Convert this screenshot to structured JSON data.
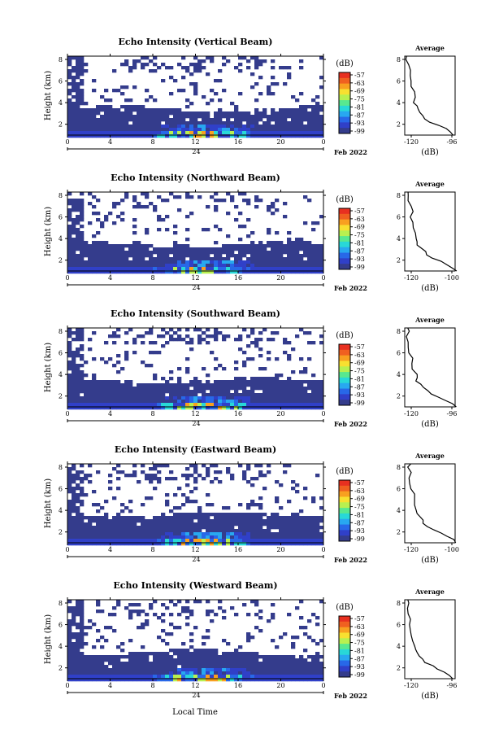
{
  "figure": {
    "xlabel": "Local Time",
    "panels": [
      {
        "title": "Echo Intensity (Vertical Beam)",
        "profile_xticks": [
          "-120",
          "-96"
        ]
      },
      {
        "title": "Echo Intensity (Northward Beam)",
        "profile_xticks": [
          "-120",
          "-100"
        ]
      },
      {
        "title": "Echo Intensity (Southward Beam)",
        "profile_xticks": [
          "-120",
          "-96"
        ]
      },
      {
        "title": "Echo Intensity (Eastward Beam)",
        "profile_xticks": [
          "-120",
          "-100"
        ]
      },
      {
        "title": "Echo Intensity (Westward Beam)",
        "profile_xticks": [
          "-120",
          "-96"
        ]
      }
    ]
  },
  "chart_data": {
    "type": "heatmap",
    "ylabel": "Height (km)",
    "y_ticks": [
      "2",
      "4",
      "6",
      "8"
    ],
    "ylim": [
      1,
      8.3
    ],
    "x_ticks": [
      "0",
      "4",
      "8",
      "12",
      "16",
      "20",
      "0"
    ],
    "xlim": [
      0,
      24
    ],
    "date_tick": "24",
    "date_label": "Feb 2022",
    "colorbar": {
      "label": "(dB)",
      "ticks": [
        "-57",
        "-63",
        "-69",
        "-75",
        "-81",
        "-87",
        "-93",
        "-99"
      ],
      "colors": [
        "#e83020",
        "#f06020",
        "#f8a020",
        "#f8e030",
        "#b8f050",
        "#58e890",
        "#28d8d8",
        "#28a8f0",
        "#2868e8",
        "#3040c8",
        "#343c8c"
      ]
    },
    "profile": {
      "title": "Average",
      "xlabel": "(dB)",
      "y_ticks": [
        "2",
        "4",
        "6",
        "8"
      ],
      "ylim": [
        1,
        8.3
      ],
      "xlim": [
        -128,
        -90
      ],
      "points": [
        [
          -90.5,
          1.0
        ],
        [
          -93,
          1.3
        ],
        [
          -98,
          1.6
        ],
        [
          -103,
          1.9
        ],
        [
          -108,
          2.2
        ],
        [
          -112,
          2.5
        ],
        [
          -115,
          2.8
        ],
        [
          -117,
          3.1
        ],
        [
          -119,
          3.4
        ],
        [
          -119.5,
          3.7
        ],
        [
          -120,
          4.0
        ],
        [
          -121,
          4.5
        ],
        [
          -122,
          5.0
        ],
        [
          -123,
          5.5
        ],
        [
          -124,
          6.0
        ],
        [
          -124.5,
          6.5
        ],
        [
          -125,
          7.0
        ],
        [
          -125.5,
          7.5
        ],
        [
          -126,
          8.0
        ],
        [
          -126,
          8.3
        ]
      ]
    }
  }
}
